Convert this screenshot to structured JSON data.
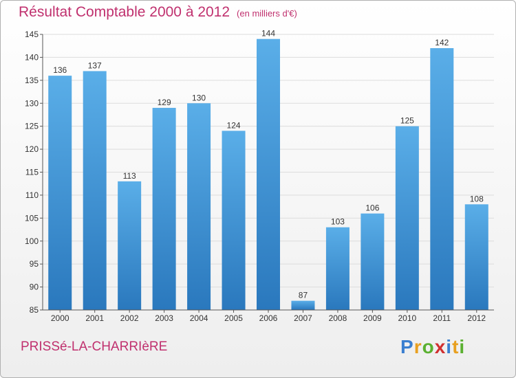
{
  "chart_data": {
    "type": "bar",
    "title": "Résultat Comptable 2000 à 2012",
    "subtitle": "(en milliers d'€)",
    "categories": [
      "2000",
      "2001",
      "2002",
      "2003",
      "2004",
      "2005",
      "2006",
      "2007",
      "2008",
      "2009",
      "2010",
      "2011",
      "2012"
    ],
    "values": [
      136,
      137,
      113,
      129,
      130,
      124,
      144,
      87,
      103,
      106,
      125,
      142,
      108
    ],
    "ylim": [
      85,
      145
    ],
    "yticks": [
      85,
      90,
      95,
      100,
      105,
      110,
      115,
      120,
      125,
      130,
      135,
      140,
      145
    ],
    "grid": true,
    "bar_color": "#4a9ee0"
  },
  "place_name": "PRISSé-LA-CHARRIèRE",
  "logo": {
    "letters": [
      "P",
      "r",
      "o",
      "x",
      "i",
      "t",
      "i"
    ],
    "colors": [
      "#3a7fd0",
      "#e8a020",
      "#5ab030",
      "#d03030",
      "#3a7fd0",
      "#e8a020",
      "#5ab030"
    ]
  }
}
